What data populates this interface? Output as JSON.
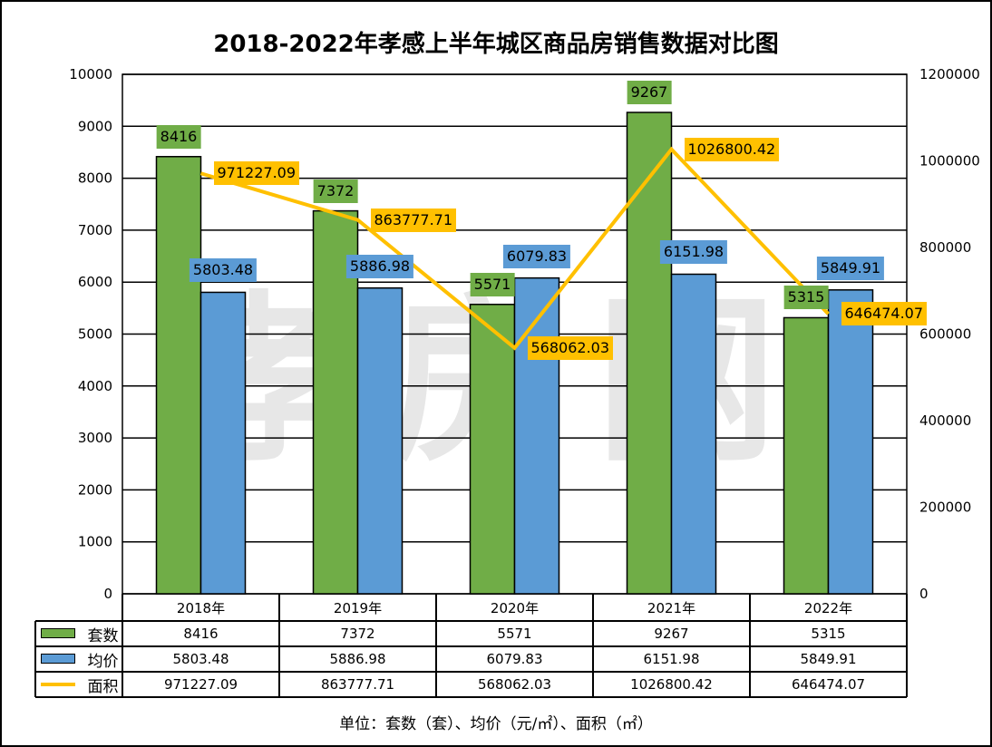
{
  "chart_data": {
    "type": "bar+line",
    "title": "2018-2022年孝感上半年城区商品房销售数据对比图",
    "categories": [
      "2018年",
      "2019年",
      "2020年",
      "2021年",
      "2022年"
    ],
    "series": [
      {
        "name": "套数",
        "type": "bar",
        "axis": "left",
        "color": "#70AD47",
        "values": [
          8416,
          7372,
          5571,
          9267,
          5315
        ],
        "labels": [
          "8416",
          "7372",
          "5571",
          "9267",
          "5315"
        ]
      },
      {
        "name": "均价",
        "type": "bar",
        "axis": "left",
        "color": "#5B9BD5",
        "values": [
          5803.48,
          5886.98,
          6079.83,
          6151.98,
          5849.91
        ],
        "labels": [
          "5803.48",
          "5886.98",
          "6079.83",
          "6151.98",
          "5849.91"
        ]
      },
      {
        "name": "面积",
        "type": "line",
        "axis": "right",
        "color": "#FFC000",
        "values": [
          971227.09,
          863777.71,
          568062.03,
          1026800.42,
          646474.07
        ],
        "labels": [
          "971227.09",
          "863777.71",
          "568062.03",
          "1026800.42",
          "646474.07"
        ]
      }
    ],
    "y_left": {
      "range": [
        0,
        10000
      ],
      "ticks": [
        "0",
        "1000",
        "2000",
        "3000",
        "4000",
        "5000",
        "6000",
        "7000",
        "8000",
        "9000",
        "10000"
      ]
    },
    "y_right": {
      "range": [
        0,
        1200000
      ],
      "ticks": [
        "0",
        "200000",
        "400000",
        "600000",
        "800000",
        "1000000",
        "1200000"
      ]
    },
    "grid": true,
    "legend": "data-table",
    "footnote": "单位：套数（套）、均价（元/㎡）、面积（㎡）"
  },
  "watermark": "孝房网"
}
